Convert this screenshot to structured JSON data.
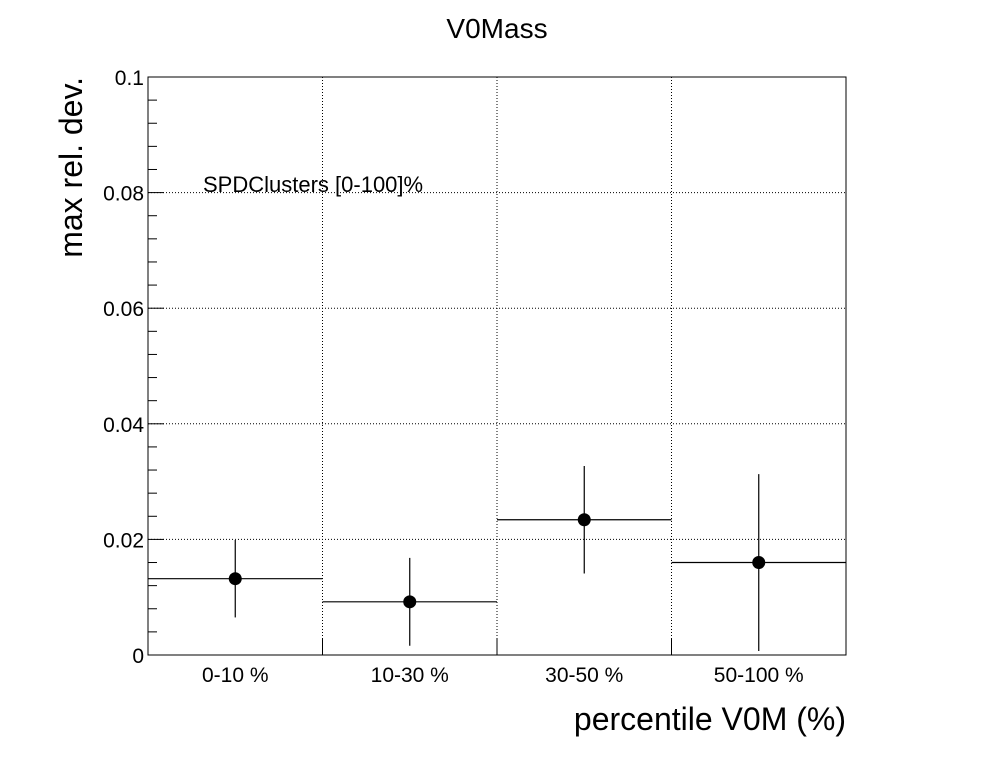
{
  "chart_data": {
    "type": "scatter",
    "title": "V0Mass",
    "xlabel": "percentile V0M (%)",
    "ylabel": "max rel. dev.",
    "annotation": "SPDClusters [0-100]%",
    "categories": [
      "0-10 %",
      "10-30 %",
      "30-50 %",
      "50-100 %"
    ],
    "ylim": [
      0,
      0.1
    ],
    "yticks": [
      0,
      0.02,
      0.04,
      0.06,
      0.08,
      0.1
    ],
    "ytick_labels": [
      "0",
      "0.02",
      "0.04",
      "0.06",
      "0.08",
      "0.1"
    ],
    "grid": true,
    "series": [
      {
        "values": [
          0.0132,
          0.0092,
          0.0234,
          0.016
        ],
        "errors": [
          0.0067,
          0.0076,
          0.0093,
          0.0153
        ],
        "color": "#000000"
      }
    ]
  }
}
